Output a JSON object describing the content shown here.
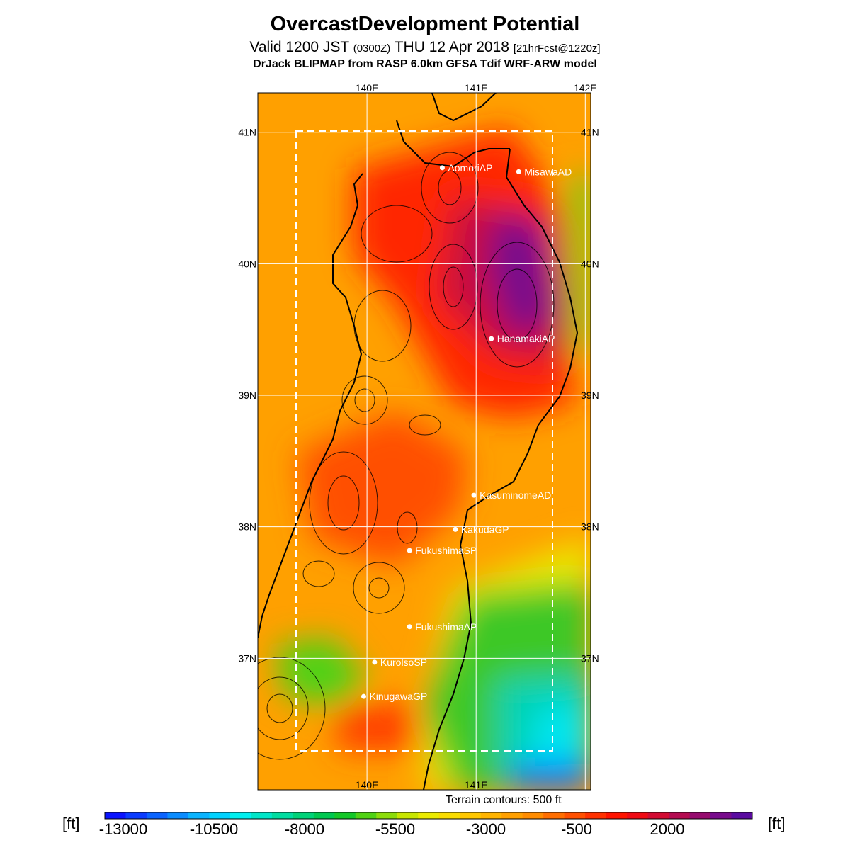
{
  "header": {
    "title": "OvercastDevelopment Potential",
    "valid_prefix": "Valid 1200 JST",
    "valid_zulu": "(0300Z)",
    "valid_date": "THU 12 Apr 2018",
    "forecast": "[21hrFcst@1220z]",
    "model": "DrJack BLIPMAP from RASP 6.0km GFSA Tdif WRF-ARW model"
  },
  "map": {
    "extent": {
      "lon_min": 139.0,
      "lon_max": 142.05,
      "lat_min": 36.0,
      "lat_max": 41.3
    },
    "lon_ticks": [
      {
        "lon": 140,
        "top": "140E",
        "bottom": "140E"
      },
      {
        "lon": 141,
        "top": "141E",
        "bottom": "141E"
      },
      {
        "lon": 142,
        "top": "142E",
        "bottom": ""
      }
    ],
    "lat_ticks": [
      {
        "lat": 41,
        "label": "41N"
      },
      {
        "lat": 40,
        "label": "40N"
      },
      {
        "lat": 39,
        "label": "39N"
      },
      {
        "lat": 38,
        "label": "38N"
      },
      {
        "lat": 37,
        "label": "37N"
      }
    ],
    "sites": [
      {
        "name": "AomoriAP",
        "lon": 140.69,
        "lat": 40.73
      },
      {
        "name": "MisawaAD",
        "lon": 141.39,
        "lat": 40.7
      },
      {
        "name": "HanamakiAP",
        "lon": 141.14,
        "lat": 39.43
      },
      {
        "name": "KasuminomeAD",
        "lon": 140.98,
        "lat": 38.24
      },
      {
        "name": "KakudaGP",
        "lon": 140.81,
        "lat": 37.98
      },
      {
        "name": "FukushimaSP",
        "lon": 140.39,
        "lat": 37.82
      },
      {
        "name": "FukushimaAP",
        "lon": 140.39,
        "lat": 37.24
      },
      {
        "name": "KurolsoSP",
        "lon": 140.07,
        "lat": 36.97
      },
      {
        "name": "KinugawaGP",
        "lon": 139.97,
        "lat": 36.71
      }
    ],
    "terrain_note": "Terrain contours: 500 ft"
  },
  "colorbar": {
    "unit": "[ft]",
    "labels": [
      "-13000",
      "-10500",
      "-8000",
      "-5500",
      "-3000",
      "-500",
      "2000"
    ],
    "colors": [
      "#0a14ff",
      "#0a3cff",
      "#0a64ff",
      "#0a8cff",
      "#0ab4ff",
      "#00d2ff",
      "#00f0f0",
      "#00e6c8",
      "#00dca0",
      "#00d278",
      "#00c850",
      "#14c828",
      "#50d214",
      "#8cdc0a",
      "#c8e600",
      "#ebeb00",
      "#fadc00",
      "#ffc800",
      "#ffb400",
      "#ffa000",
      "#ff8c00",
      "#ff6e00",
      "#ff5000",
      "#ff3200",
      "#ff1400",
      "#f00a14",
      "#d20a32",
      "#b40a50",
      "#960a6e",
      "#780a8c",
      "#5a0aa0"
    ]
  }
}
